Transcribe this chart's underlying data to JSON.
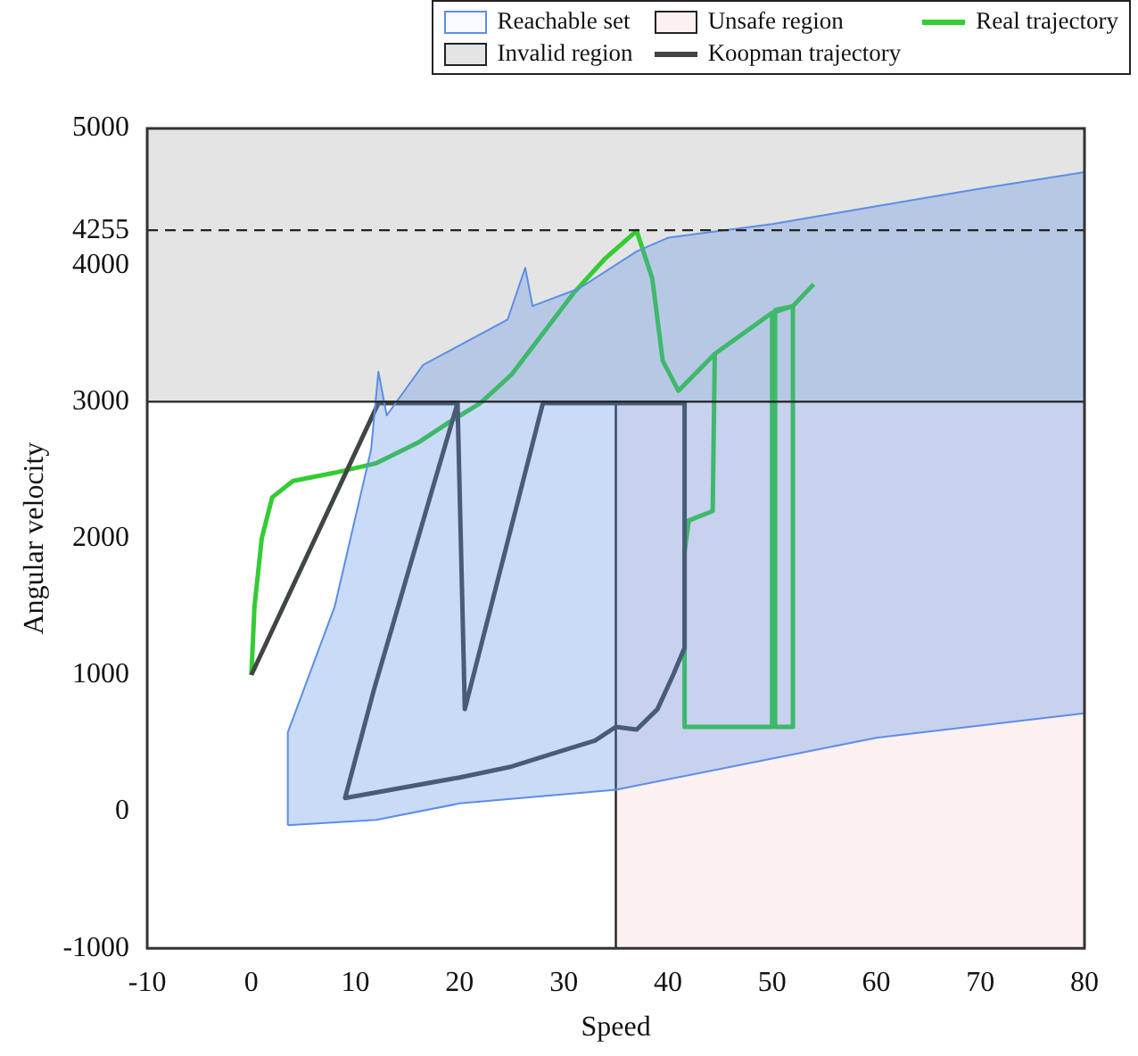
{
  "chart_data": {
    "type": "line",
    "xlabel": "Speed",
    "ylabel": "Angular velocity",
    "xlim": [
      -10,
      80
    ],
    "xticks": [
      -10,
      0,
      10,
      20,
      30,
      40,
      50,
      60,
      70,
      80
    ],
    "ylim": [
      -1000,
      5000
    ],
    "yticks": [
      -1000,
      0,
      1000,
      2000,
      3000,
      4000,
      4255,
      5000
    ],
    "grid": false,
    "legend": "top",
    "marker": "none",
    "bands": [
      {
        "axis": "y",
        "from": 3000,
        "to": 5000,
        "label": "Invalid region",
        "color": "#e3e4e3"
      },
      {
        "axis": "x",
        "from": 35,
        "to": 80,
        "label": "Unsafe region",
        "color": "#fdf0f0"
      }
    ],
    "ref_lines": [
      {
        "axis": "x",
        "value": 35,
        "label": null,
        "line_style": "solid"
      },
      {
        "axis": "y",
        "value": 3000,
        "label": null,
        "line_style": "solid"
      },
      {
        "axis": "y",
        "value": 4255,
        "label": null,
        "line_style": "dashed"
      }
    ],
    "series": [
      {
        "name": "Reachable set",
        "type": "area",
        "color": "#5b8ee6",
        "x": [
          3.5,
          3.5,
          8,
          11.5,
          12.2,
          13,
          16.5,
          24.6,
          26.3,
          27,
          31.5,
          37,
          40,
          50,
          60,
          70,
          80,
          80,
          60,
          35,
          20,
          12,
          3.5
        ],
        "values": [
          -100,
          580,
          1500,
          2650,
          3220,
          2900,
          3270,
          3600,
          3980,
          3700,
          3830,
          4100,
          4200,
          4300,
          4430,
          4560,
          4680,
          720,
          540,
          160,
          60,
          -60,
          -100
        ]
      },
      {
        "name": "Koopman trajectory",
        "color": "#404545",
        "x": [
          0,
          12.2,
          19.8,
          20.5,
          28,
          41.6,
          41.6,
          40.5,
          39,
          37,
          35,
          33,
          30,
          25,
          20,
          9,
          11.8,
          16.5,
          19.8
        ],
        "values": [
          1000,
          2990,
          2990,
          750,
          2990,
          2990,
          1200,
          1000,
          750,
          600,
          620,
          520,
          450,
          330,
          250,
          100,
          900,
          2130,
          2990
        ]
      },
      {
        "name": "Real trajectory",
        "color": "#33cc33",
        "x": [
          0,
          0.3,
          1,
          2,
          4,
          8,
          12,
          16,
          19,
          22,
          25,
          28,
          31,
          34,
          37,
          38.5,
          39.5,
          41,
          44.5,
          44.3,
          42,
          41.6,
          41.6,
          50,
          50,
          44.5,
          50,
          52,
          52,
          50.3,
          50.3,
          52,
          54
        ],
        "values": [
          1000,
          1500,
          2000,
          2300,
          2420,
          2480,
          2550,
          2700,
          2850,
          2990,
          3200,
          3500,
          3800,
          4050,
          4250,
          3900,
          3300,
          3080,
          3350,
          2200,
          2130,
          1900,
          620,
          620,
          3650,
          3350,
          3650,
          3700,
          620,
          620,
          3670,
          3700,
          3860
        ]
      }
    ]
  }
}
